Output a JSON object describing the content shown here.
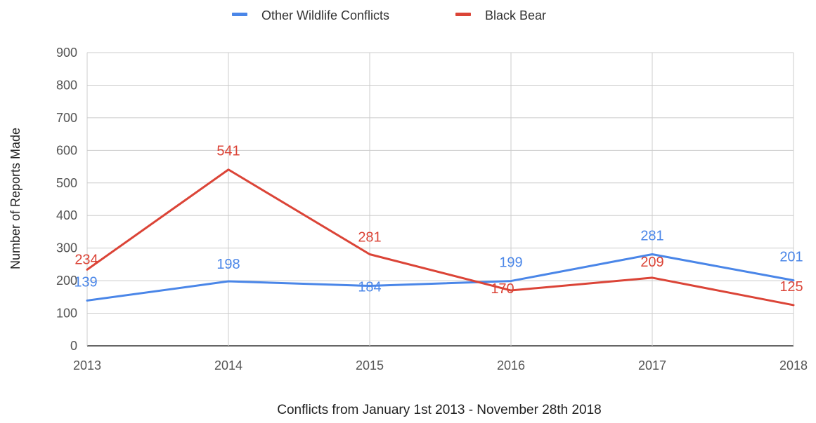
{
  "chart_data": {
    "type": "line",
    "title": "",
    "xlabel": "Conflicts from January 1st 2013 - November 28th 2018",
    "ylabel": "Number of Reports Made",
    "x": [
      "2013",
      "2014",
      "2015",
      "2016",
      "2017",
      "2018"
    ],
    "ylim": [
      0,
      900
    ],
    "yticks": [
      0,
      100,
      200,
      300,
      400,
      500,
      600,
      700,
      800,
      900
    ],
    "grid": true,
    "legend_position": "top-center",
    "series": [
      {
        "name": "Other Wildlife Conflicts",
        "color": "#4a86e8",
        "values": [
          139,
          198,
          184,
          199,
          281,
          201
        ]
      },
      {
        "name": "Black Bear",
        "color": "#db4437",
        "values": [
          234,
          541,
          281,
          170,
          209,
          125
        ]
      }
    ]
  },
  "colors": {
    "grid": "#cccccc",
    "axis": "#333333",
    "tick_text": "#555555"
  }
}
